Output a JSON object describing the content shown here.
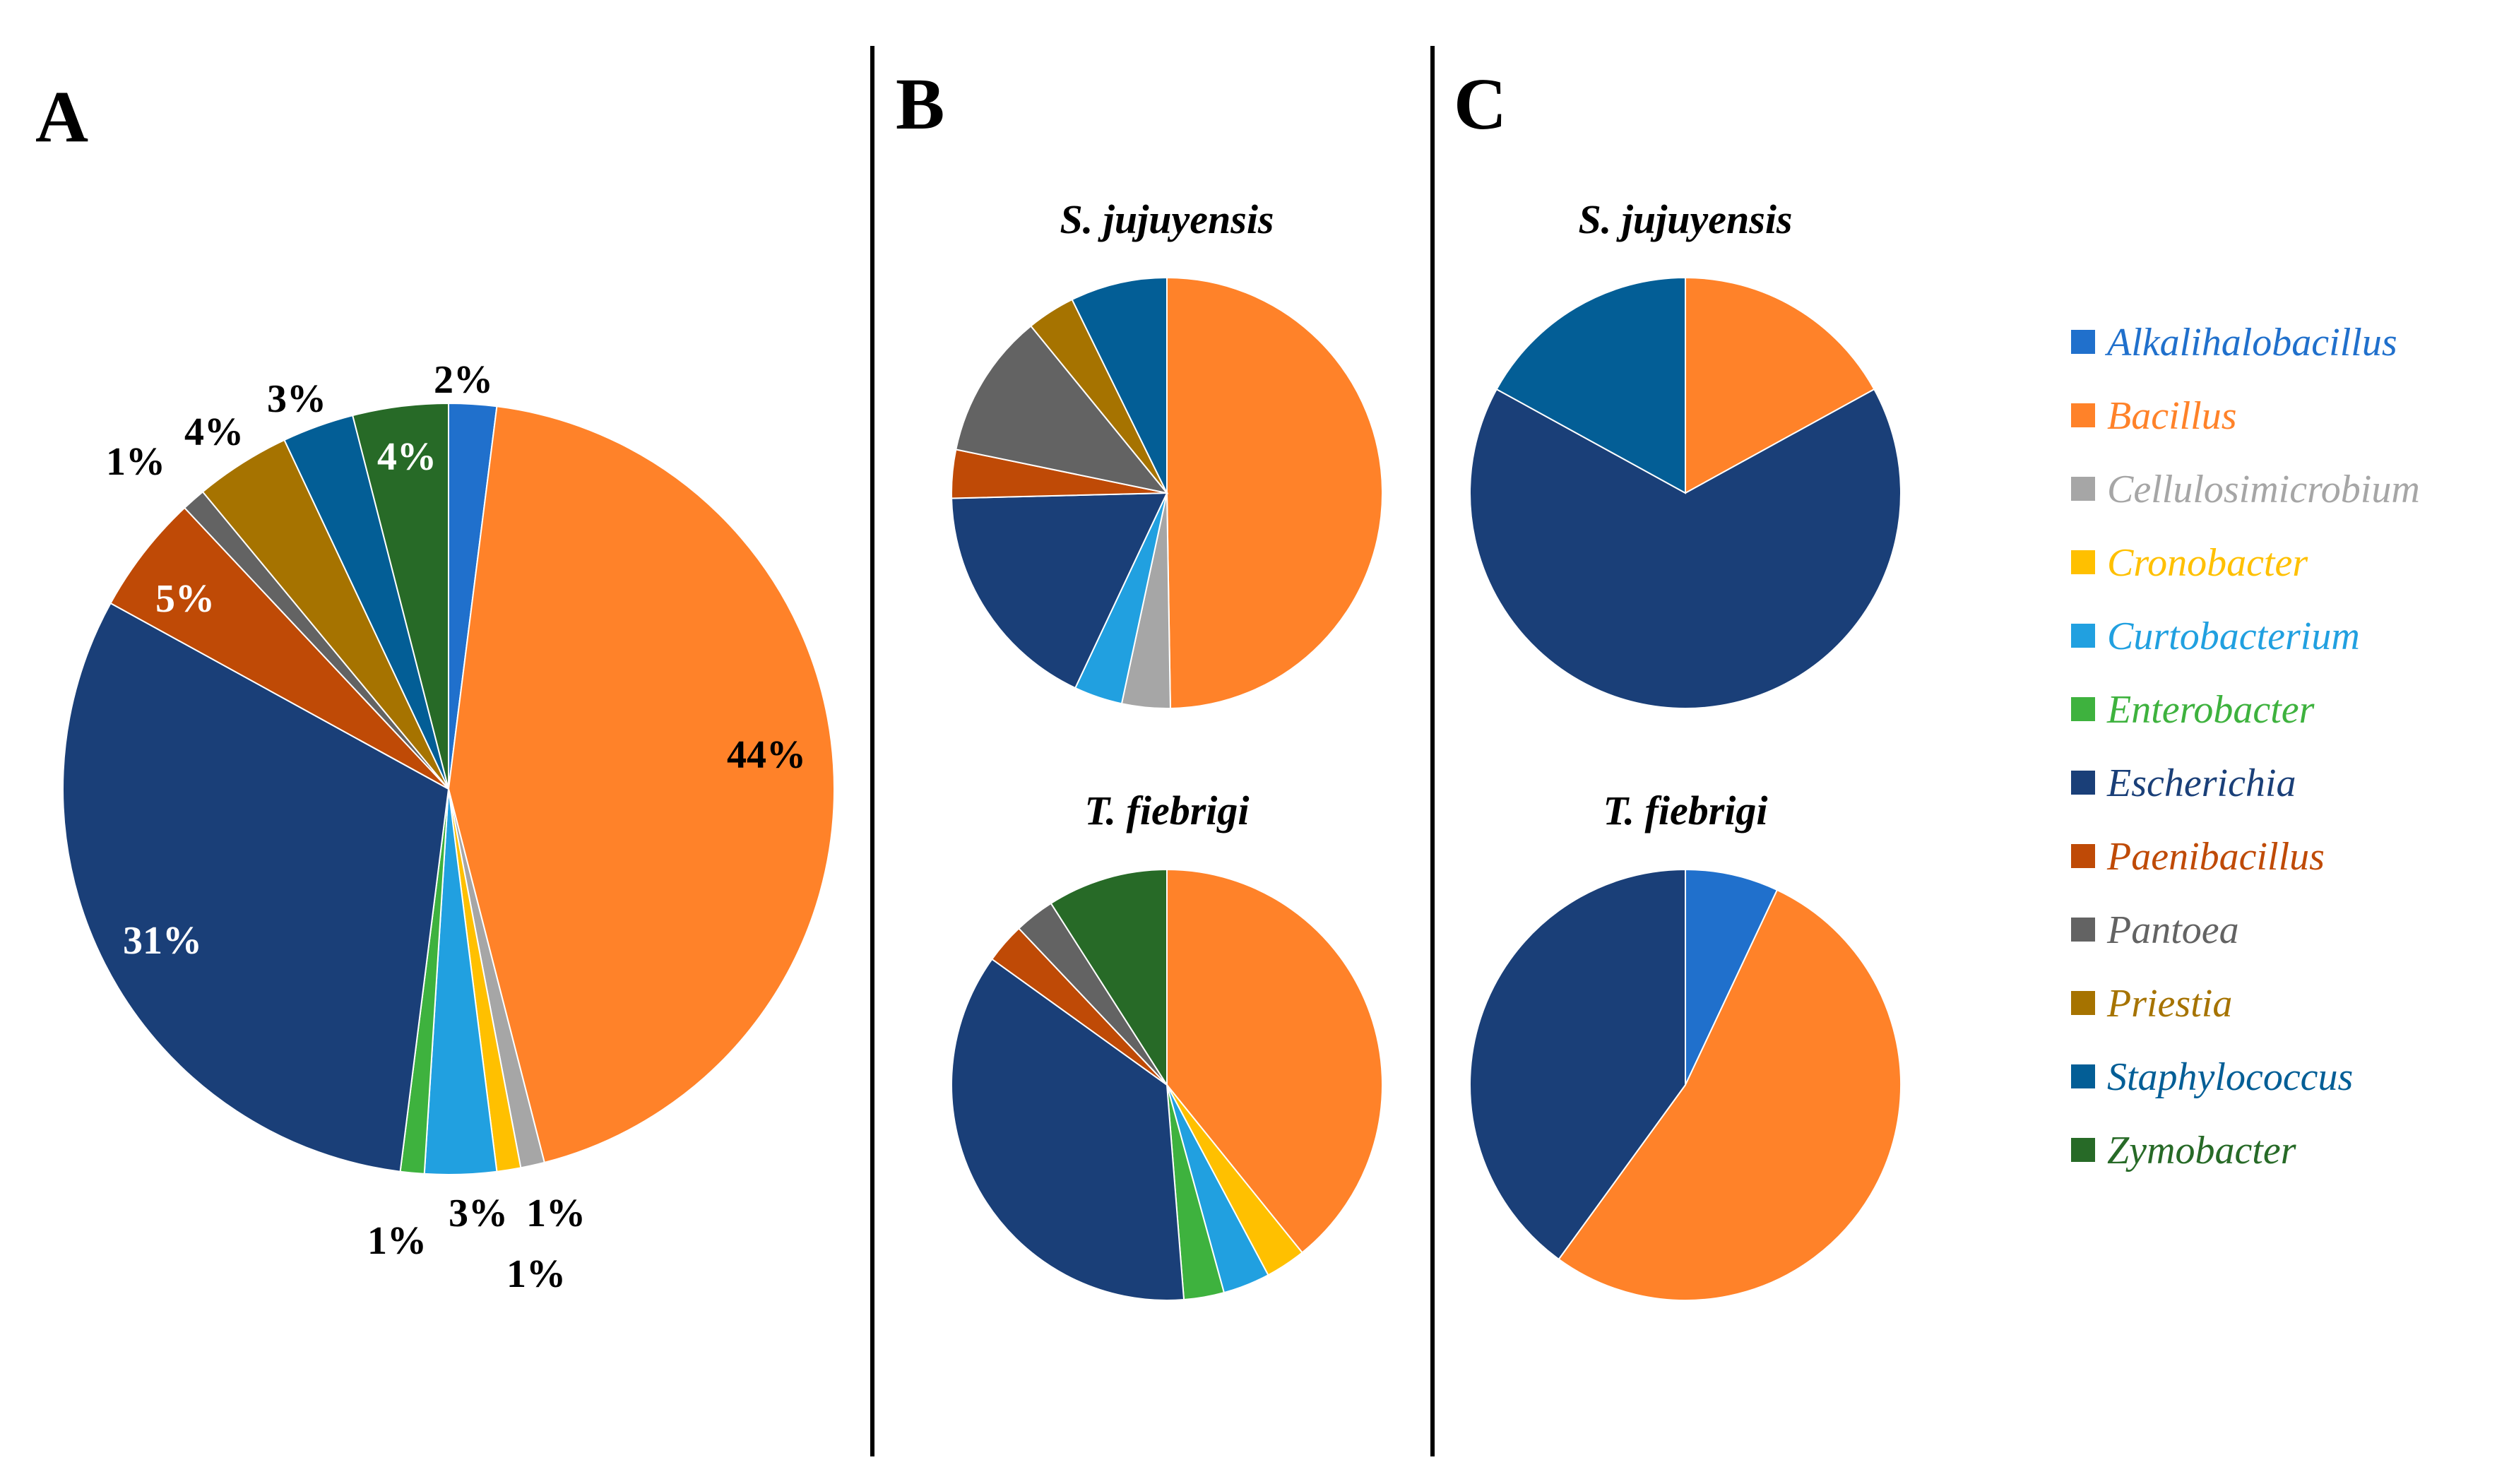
{
  "colors": {
    "Alkalihalobacillus": "#2070CC",
    "Bacillus": "#FF8229",
    "Cellulosimicrobium": "#A6A6A6",
    "Cronobacter": "#FFC000",
    "Curtobacterium": "#21A0E0",
    "Enterobacter": "#3EB23E",
    "Escherichia": "#1A3F78",
    "Paenibacillus": "#BF4A06",
    "Pantoea": "#636363",
    "Priestia": "#A67300",
    "Staphylococcus": "#035E96",
    "Zymobacter": "#276A27"
  },
  "chart_data": [
    {
      "type": "pie",
      "panel": "A",
      "title": "",
      "slices": [
        {
          "label": "Alkalihalobacillus",
          "value": 2,
          "text": "2%"
        },
        {
          "label": "Bacillus",
          "value": 44,
          "text": "44%"
        },
        {
          "label": "Cellulosimicrobium",
          "value": 1,
          "text": "1%"
        },
        {
          "label": "Cronobacter",
          "value": 1,
          "text": "1%"
        },
        {
          "label": "Curtobacterium",
          "value": 3,
          "text": "3%"
        },
        {
          "label": "Enterobacter",
          "value": 1,
          "text": "1%"
        },
        {
          "label": "Escherichia",
          "value": 31,
          "text": "31%"
        },
        {
          "label": "Paenibacillus",
          "value": 5,
          "text": "5%"
        },
        {
          "label": "Pantoea",
          "value": 1,
          "text": "1%"
        },
        {
          "label": "Priestia",
          "value": 4,
          "text": "4%"
        },
        {
          "label": "Staphylococcus",
          "value": 3,
          "text": "3%"
        },
        {
          "label": "Zymobacter",
          "value": 4,
          "text": "4%"
        }
      ]
    },
    {
      "type": "pie",
      "panel": "B",
      "title": "S. jujuyensis",
      "slices": [
        {
          "label": "Bacillus",
          "value": 48
        },
        {
          "label": "Cellulosimicrobium",
          "value": 3.5
        },
        {
          "label": "Curtobacterium",
          "value": 3.5
        },
        {
          "label": "Escherichia",
          "value": 17
        },
        {
          "label": "Paenibacillus",
          "value": 3.5
        },
        {
          "label": "Pantoea",
          "value": 10.5
        },
        {
          "label": "Priestia",
          "value": 3.5
        },
        {
          "label": "Staphylococcus",
          "value": 7
        }
      ]
    },
    {
      "type": "pie",
      "panel": "B",
      "title": "T. fiebrigi",
      "slices": [
        {
          "label": "Bacillus",
          "value": 39
        },
        {
          "label": "Cronobacter",
          "value": 3
        },
        {
          "label": "Curtobacterium",
          "value": 3.5
        },
        {
          "label": "Enterobacter",
          "value": 3
        },
        {
          "label": "Escherichia",
          "value": 36
        },
        {
          "label": "Paenibacillus",
          "value": 3
        },
        {
          "label": "Pantoea",
          "value": 3
        },
        {
          "label": "Zymobacter",
          "value": 9
        }
      ]
    },
    {
      "type": "pie",
      "panel": "C",
      "title": "S. jujuyensis",
      "slices": [
        {
          "label": "Bacillus",
          "value": 17
        },
        {
          "label": "Escherichia",
          "value": 66
        },
        {
          "label": "Staphylococcus",
          "value": 17
        }
      ]
    },
    {
      "type": "pie",
      "panel": "C",
      "title": "T. fiebrigi",
      "slices": [
        {
          "label": "Alkalihalobacillus",
          "value": 7
        },
        {
          "label": "Bacillus",
          "value": 53
        },
        {
          "label": "Escherichia",
          "value": 40
        }
      ]
    }
  ],
  "legend": {
    "items": [
      "Alkalihalobacillus",
      "Bacillus",
      "Cellulosimicrobium",
      "Cronobacter",
      "Curtobacterium",
      "Enterobacter",
      "Escherichia",
      "Paenibacillus",
      "Pantoea",
      "Priestia",
      "Staphylococcus",
      "Zymobacter"
    ]
  }
}
